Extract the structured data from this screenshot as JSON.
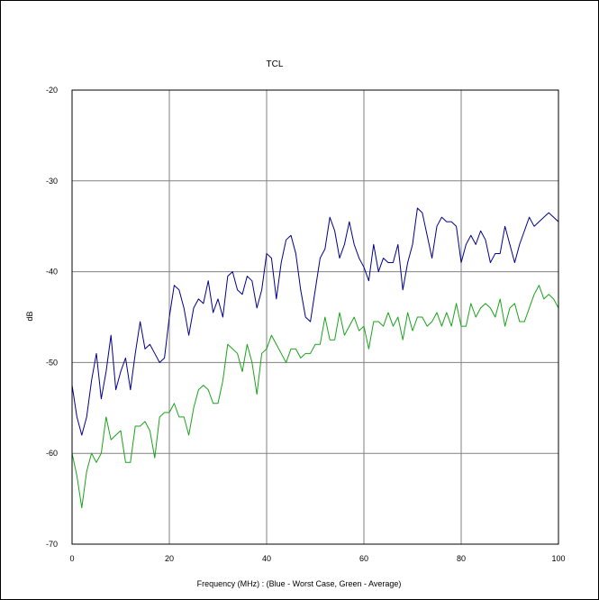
{
  "chart_data": {
    "type": "line",
    "title": "TCL",
    "xlabel": "Frequency (MHz) : (Blue - Worst Case, Green - Average)",
    "ylabel": "dB",
    "xlim": [
      0,
      100
    ],
    "ylim": [
      -70,
      -20
    ],
    "x_ticks": [
      "0",
      "20",
      "40",
      "60",
      "80",
      "100"
    ],
    "y_ticks": [
      "-20",
      "-30",
      "-40",
      "-50",
      "-60",
      "-70"
    ],
    "grid": true,
    "colors": {
      "blue": "#00008b",
      "green": "#1aa31a",
      "grid": "#808080"
    },
    "series": [
      {
        "color": "blue",
        "x": [
          0,
          1,
          2,
          3,
          4,
          5,
          6,
          7,
          8,
          9,
          10,
          11,
          12,
          13,
          14,
          15,
          16,
          17,
          18,
          19,
          20,
          21,
          22,
          23,
          24,
          25,
          26,
          27,
          28,
          29,
          30,
          31,
          32,
          33,
          34,
          35,
          36,
          37,
          38,
          39,
          40,
          41,
          42,
          43,
          44,
          45,
          46,
          47,
          48,
          49,
          50,
          51,
          52,
          53,
          54,
          55,
          56,
          57,
          58,
          59,
          60,
          61,
          62,
          63,
          64,
          65,
          66,
          67,
          68,
          69,
          70,
          71,
          72,
          73,
          74,
          75,
          76,
          77,
          78,
          79,
          80,
          81,
          82,
          83,
          84,
          85,
          86,
          87,
          88,
          89,
          90,
          91,
          92,
          93,
          94,
          95,
          96,
          97,
          98,
          99,
          100
        ],
        "values": [
          -52.5,
          -56,
          -58,
          -56,
          -52,
          -49,
          -54,
          -51,
          -47,
          -53,
          -51,
          -49.5,
          -53,
          -49,
          -45.5,
          -48.5,
          -48,
          -49,
          -50,
          -49.5,
          -45,
          -41.5,
          -42,
          -44,
          -47,
          -44,
          -43,
          -43.5,
          -41,
          -44.5,
          -43,
          -45,
          -40.5,
          -40,
          -42,
          -42.5,
          -40.5,
          -41,
          -44,
          -42,
          -38,
          -38.5,
          -43,
          -39,
          -36.5,
          -36,
          -38,
          -42,
          -45,
          -45.5,
          -42,
          -38.5,
          -37.5,
          -34,
          -35.5,
          -38.5,
          -37,
          -34.5,
          -37,
          -38.5,
          -39.5,
          -41,
          -37,
          -40,
          -38.5,
          -39,
          -39,
          -37,
          -42,
          -39,
          -37,
          -33,
          -33.5,
          -36,
          -38.5,
          -35,
          -34,
          -34.5,
          -34.5,
          -35,
          -39,
          -37,
          -36,
          -37,
          -35.5,
          -36.5,
          -39,
          -38,
          -38,
          -35,
          -37,
          -39,
          -37,
          -35.5,
          -34,
          -35,
          -34.5,
          -34,
          -33.5,
          -34,
          -34.5
        ]
      },
      {
        "color": "green",
        "x": [
          0,
          1,
          2,
          3,
          4,
          5,
          6,
          7,
          8,
          9,
          10,
          11,
          12,
          13,
          14,
          15,
          16,
          17,
          18,
          19,
          20,
          21,
          22,
          23,
          24,
          25,
          26,
          27,
          28,
          29,
          30,
          31,
          32,
          33,
          34,
          35,
          36,
          37,
          38,
          39,
          40,
          41,
          42,
          43,
          44,
          45,
          46,
          47,
          48,
          49,
          50,
          51,
          52,
          53,
          54,
          55,
          56,
          57,
          58,
          59,
          60,
          61,
          62,
          63,
          64,
          65,
          66,
          67,
          68,
          69,
          70,
          71,
          72,
          73,
          74,
          75,
          76,
          77,
          78,
          79,
          80,
          81,
          82,
          83,
          84,
          85,
          86,
          87,
          88,
          89,
          90,
          91,
          92,
          93,
          94,
          95,
          96,
          97,
          98,
          99,
          100
        ],
        "values": [
          -60,
          -62.5,
          -66,
          -62,
          -60,
          -61,
          -60,
          -56,
          -58.5,
          -58,
          -57.5,
          -61,
          -61,
          -57,
          -57,
          -56.5,
          -57.5,
          -60.5,
          -56,
          -55.5,
          -55.5,
          -54.5,
          -56,
          -56,
          -58,
          -55,
          -53,
          -52.5,
          -53,
          -54.5,
          -54.5,
          -52,
          -48,
          -48.5,
          -49,
          -51,
          -48,
          -50,
          -53.5,
          -49,
          -48.5,
          -47,
          -48,
          -49,
          -50,
          -48.5,
          -48.5,
          -49.5,
          -49,
          -49,
          -48,
          -48,
          -45,
          -47.5,
          -47.5,
          -44.5,
          -47,
          -46,
          -45,
          -46.5,
          -46,
          -48.5,
          -45.5,
          -45.5,
          -46,
          -44.5,
          -46,
          -45,
          -47.5,
          -44.5,
          -46.5,
          -45,
          -45,
          -46,
          -45.5,
          -44.5,
          -46,
          -44.5,
          -46,
          -43.5,
          -46,
          -46,
          -43.5,
          -45,
          -44,
          -43.5,
          -44,
          -45,
          -43,
          -46,
          -44,
          -43.5,
          -45.5,
          -45.5,
          -44,
          -42.5,
          -41.5,
          -43,
          -42.5,
          -43,
          -44
        ]
      }
    ]
  }
}
